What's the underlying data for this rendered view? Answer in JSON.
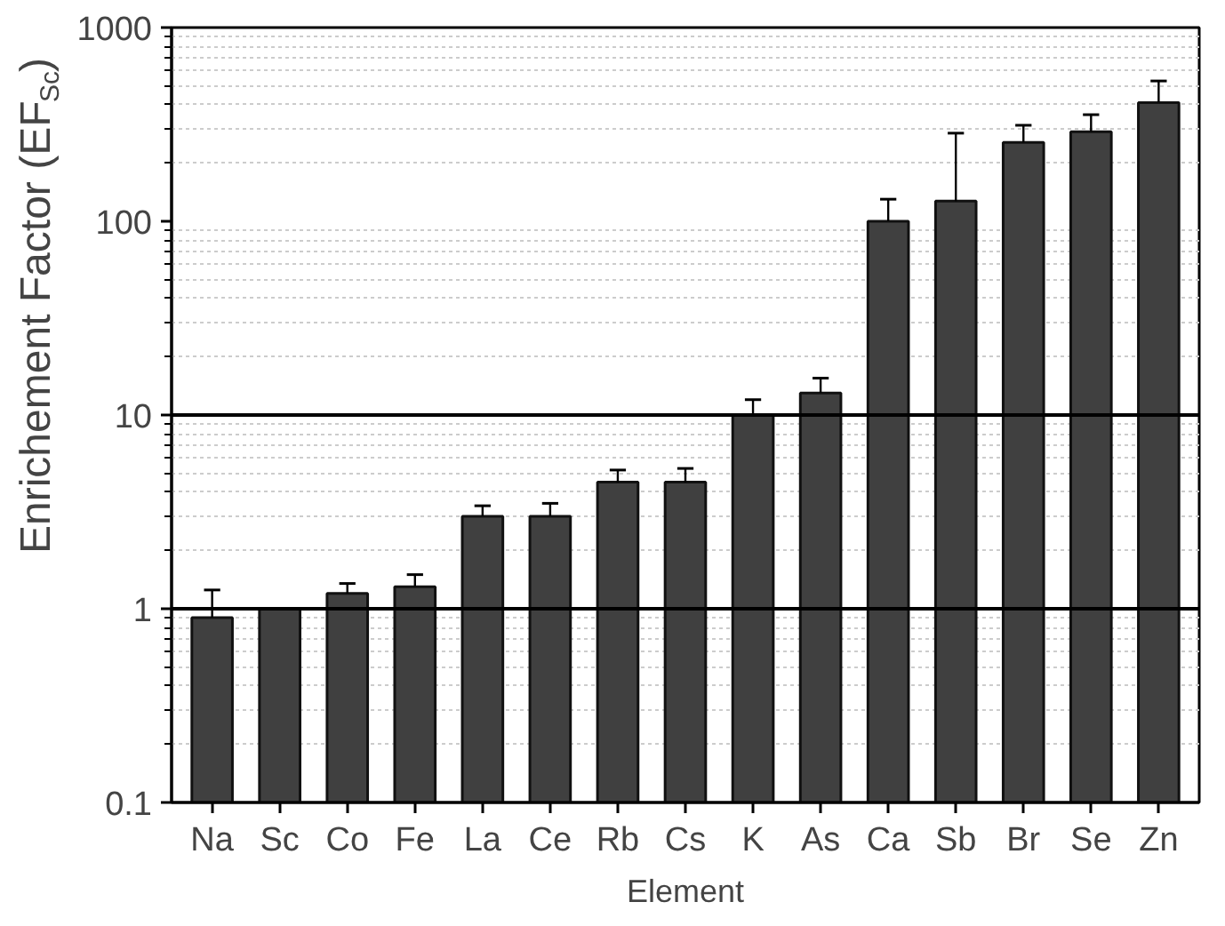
{
  "chart_data": {
    "type": "bar",
    "xlabel": "Element",
    "ylabel": "Enrichement Factor (EF$_{Sc}$)",
    "categories": [
      "Na",
      "Sc",
      "Co",
      "Fe",
      "La",
      "Ce",
      "Rb",
      "Cs",
      "K",
      "As",
      "Ca",
      "Sb",
      "Br",
      "Se",
      "Zn"
    ],
    "values": [
      0.9,
      1.0,
      1.2,
      1.3,
      3.0,
      3.0,
      4.5,
      4.5,
      10,
      13,
      100,
      127,
      255,
      290,
      410
    ],
    "errors": [
      [
        0.9,
        1.25
      ],
      null,
      [
        1.2,
        1.35
      ],
      [
        1.3,
        1.5
      ],
      [
        3.0,
        3.4
      ],
      [
        3.0,
        3.5
      ],
      [
        4.5,
        5.2
      ],
      [
        4.5,
        5.3
      ],
      [
        10,
        12
      ],
      [
        13,
        15.5
      ],
      [
        100,
        130
      ],
      [
        127,
        285
      ],
      [
        255,
        313
      ],
      [
        290,
        355
      ],
      [
        410,
        530
      ]
    ],
    "color": "#404040",
    "log": true,
    "ylim": [
      0.1,
      1000
    ],
    "yticks": [
      0.1,
      1,
      10,
      100,
      1000
    ],
    "grid": "y",
    "ref_lines": [
      {
        "axis": "y",
        "value": 1,
        "color": "#000000"
      },
      {
        "axis": "y",
        "value": 10,
        "color": "#000000"
      }
    ]
  }
}
